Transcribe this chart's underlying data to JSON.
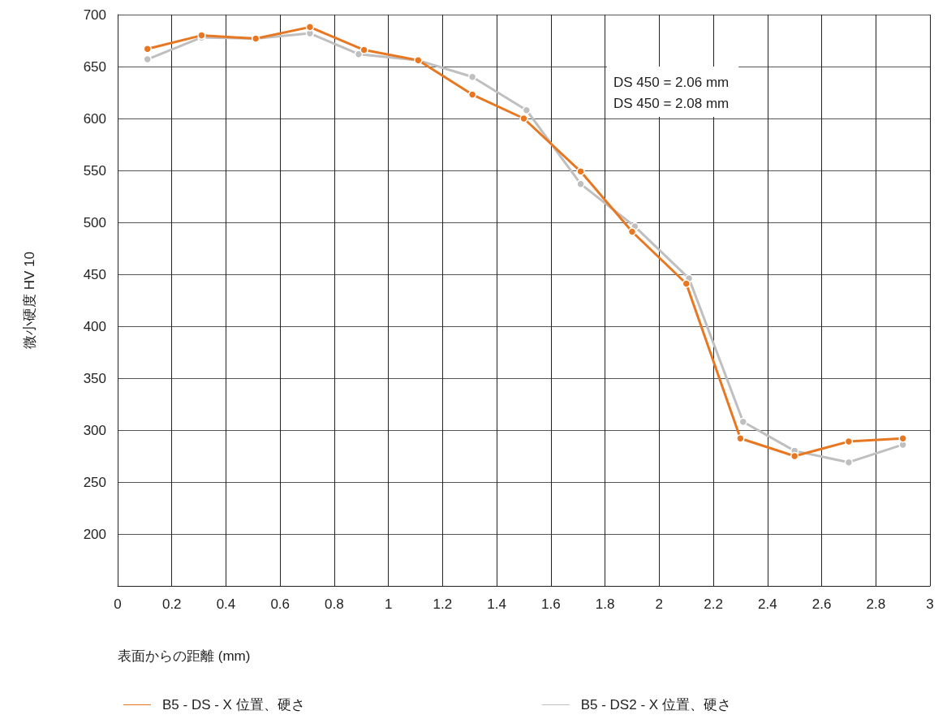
{
  "chart_data": {
    "type": "line",
    "xlabel": "表面からの距離 (mm)",
    "ylabel": "微小硬度 HV 10",
    "xlim": [
      0,
      3
    ],
    "xticks": [
      0,
      0.2,
      0.4,
      0.6,
      0.8,
      1,
      1.2,
      1.4,
      1.6,
      1.8,
      2,
      2.2,
      2.4,
      2.6,
      2.8,
      3
    ],
    "ylim": [
      150,
      700
    ],
    "yticks": [
      200,
      250,
      300,
      350,
      400,
      450,
      500,
      550,
      600,
      650,
      700
    ],
    "grid": true,
    "legend": "bottom",
    "marker": "circle",
    "line_style": "solid",
    "annotations": [
      "DS 450 = 2.06 mm",
      "DS 450 = 2.08 mm"
    ],
    "series": [
      {
        "name": "B5 - DS - X 位置、硬さ",
        "color": "#e87722",
        "x": [
          0.11,
          0.31,
          0.51,
          0.71,
          0.91,
          1.11,
          1.31,
          1.5,
          1.71,
          1.9,
          2.1,
          2.3,
          2.5,
          2.7,
          2.9
        ],
        "values": [
          667,
          680,
          677,
          688,
          666,
          656,
          623,
          600,
          549,
          491,
          441,
          292,
          275,
          289,
          292
        ]
      },
      {
        "name": "B5 - DS2 - X 位置、硬さ",
        "color": "#bfbfbf",
        "x": [
          0.11,
          0.31,
          0.51,
          0.71,
          0.89,
          1.11,
          1.31,
          1.51,
          1.71,
          1.91,
          2.11,
          2.31,
          2.5,
          2.7,
          2.9
        ],
        "values": [
          657,
          678,
          677,
          682,
          662,
          656,
          640,
          608,
          537,
          496,
          446,
          308,
          280,
          269,
          286
        ]
      }
    ]
  }
}
